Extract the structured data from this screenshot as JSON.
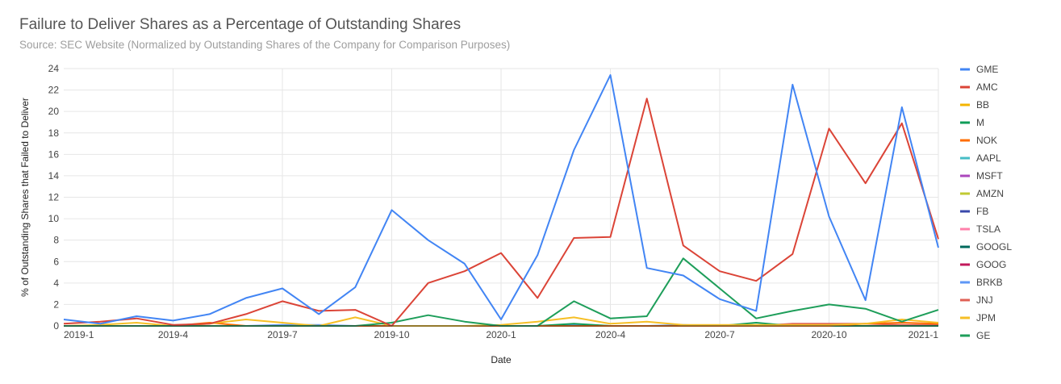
{
  "chart_data": {
    "type": "line",
    "title": "Failure to Deliver Shares as a Percentage of Outstanding Shares",
    "subtitle": "Source: SEC Website (Normalized by Outstanding Shares of the Company for Comparison Purposes)",
    "xlabel": "Date",
    "ylabel": "% of Outstanding Shares that Failed to Deliver",
    "ylim": [
      0,
      24
    ],
    "yticks": [
      0,
      2,
      4,
      6,
      8,
      10,
      12,
      14,
      16,
      18,
      20,
      22,
      24
    ],
    "xticks": [
      "2019-1",
      "2019-4",
      "2019-7",
      "2019-10",
      "2020-1",
      "2020-4",
      "2020-7",
      "2020-10",
      "2021-1"
    ],
    "x": [
      "2019-1",
      "2019-2",
      "2019-3",
      "2019-4",
      "2019-5",
      "2019-6",
      "2019-7",
      "2019-8",
      "2019-9",
      "2019-10",
      "2019-11",
      "2019-12",
      "2020-1",
      "2020-2",
      "2020-3",
      "2020-4",
      "2020-5",
      "2020-6",
      "2020-7",
      "2020-8",
      "2020-9",
      "2020-10",
      "2020-11",
      "2020-12",
      "2021-1"
    ],
    "grid": true,
    "legend_position": "right",
    "series": [
      {
        "name": "GME",
        "color": "#4285f4",
        "values": [
          0.6,
          0.2,
          0.9,
          0.5,
          1.1,
          2.6,
          3.5,
          1.1,
          3.6,
          10.8,
          8.0,
          5.8,
          0.6,
          6.6,
          16.4,
          23.4,
          5.4,
          4.7,
          2.5,
          1.4,
          22.5,
          10.2,
          2.4,
          20.4,
          7.3
        ]
      },
      {
        "name": "AMC",
        "color": "#db4437",
        "values": [
          0.2,
          0.4,
          0.7,
          0.1,
          0.2,
          1.1,
          2.3,
          1.4,
          1.5,
          0.0,
          4.0,
          5.1,
          6.8,
          2.6,
          8.2,
          8.3,
          21.2,
          7.5,
          5.1,
          4.2,
          6.7,
          18.4,
          13.3,
          18.9,
          8.1
        ]
      },
      {
        "name": "BB",
        "color": "#f4b400",
        "values": [
          0.0,
          0.0,
          0.0,
          0.0,
          0.0,
          0.0,
          0.0,
          0.0,
          0.0,
          0.0,
          0.0,
          0.0,
          0.0,
          0.0,
          0.0,
          0.0,
          0.0,
          0.0,
          0.0,
          0.0,
          0.0,
          0.0,
          0.0,
          0.0,
          0.0
        ]
      },
      {
        "name": "M",
        "color": "#0f9d58",
        "values": [
          0.0,
          0.0,
          0.0,
          0.0,
          0.0,
          0.0,
          0.0,
          0.0,
          0.0,
          0.0,
          0.0,
          0.0,
          0.0,
          0.0,
          0.2,
          0.0,
          0.0,
          0.0,
          0.0,
          0.3,
          0.0,
          0.0,
          0.0,
          0.0,
          0.0
        ]
      },
      {
        "name": "NOK",
        "color": "#ff6d00",
        "values": [
          0.0,
          0.0,
          0.0,
          0.0,
          0.3,
          0.0,
          0.0,
          0.0,
          0.0,
          0.0,
          0.0,
          0.0,
          0.0,
          0.0,
          0.0,
          0.0,
          0.0,
          0.0,
          0.0,
          0.0,
          0.0,
          0.0,
          0.2,
          0.3,
          0.2
        ]
      },
      {
        "name": "AAPL",
        "color": "#46bdc6",
        "values": [
          0.0,
          0.0,
          0.0,
          0.0,
          0.0,
          0.0,
          0.0,
          0.0,
          0.0,
          0.0,
          0.0,
          0.0,
          0.0,
          0.0,
          0.0,
          0.0,
          0.0,
          0.0,
          0.0,
          0.0,
          0.0,
          0.0,
          0.0,
          0.0,
          0.0
        ]
      },
      {
        "name": "MSFT",
        "color": "#ab47bc",
        "values": [
          0.0,
          0.0,
          0.0,
          0.0,
          0.0,
          0.0,
          0.0,
          0.0,
          0.0,
          0.0,
          0.0,
          0.0,
          0.0,
          0.0,
          0.0,
          0.0,
          0.0,
          0.0,
          0.0,
          0.0,
          0.0,
          0.0,
          0.0,
          0.0,
          0.0
        ]
      },
      {
        "name": "AMZN",
        "color": "#c0ca33",
        "values": [
          0.0,
          0.0,
          0.0,
          0.0,
          0.0,
          0.0,
          0.0,
          0.0,
          0.0,
          0.0,
          0.0,
          0.0,
          0.0,
          0.0,
          0.0,
          0.0,
          0.0,
          0.0,
          0.0,
          0.0,
          0.0,
          0.0,
          0.0,
          0.0,
          0.0
        ]
      },
      {
        "name": "FB",
        "color": "#3949ab",
        "values": [
          0.0,
          0.0,
          0.0,
          0.0,
          0.0,
          0.0,
          0.0,
          0.0,
          0.0,
          0.0,
          0.0,
          0.0,
          0.0,
          0.0,
          0.0,
          0.0,
          0.0,
          0.0,
          0.0,
          0.0,
          0.0,
          0.0,
          0.0,
          0.0,
          0.0
        ]
      },
      {
        "name": "TSLA",
        "color": "#ff80ab",
        "values": [
          0.0,
          0.0,
          0.0,
          0.0,
          0.0,
          0.0,
          0.0,
          0.0,
          0.0,
          0.0,
          0.0,
          0.0,
          0.0,
          0.0,
          0.0,
          0.0,
          0.0,
          0.0,
          0.0,
          0.0,
          0.0,
          0.0,
          0.0,
          0.0,
          0.0
        ]
      },
      {
        "name": "GOOGL",
        "color": "#00695c",
        "values": [
          0.0,
          0.0,
          0.0,
          0.0,
          0.0,
          0.0,
          0.0,
          0.0,
          0.0,
          0.0,
          0.0,
          0.0,
          0.0,
          0.0,
          0.0,
          0.0,
          0.0,
          0.0,
          0.0,
          0.0,
          0.0,
          0.0,
          0.0,
          0.0,
          0.0
        ]
      },
      {
        "name": "GOOG",
        "color": "#c2185b",
        "values": [
          0.0,
          0.0,
          0.0,
          0.0,
          0.0,
          0.0,
          0.0,
          0.0,
          0.0,
          0.0,
          0.0,
          0.0,
          0.0,
          0.0,
          0.0,
          0.0,
          0.0,
          0.0,
          0.0,
          0.0,
          0.0,
          0.0,
          0.0,
          0.0,
          0.0
        ]
      },
      {
        "name": "BRKB",
        "color": "#5e97f6",
        "values": [
          0.0,
          0.0,
          0.0,
          0.0,
          0.0,
          0.0,
          0.1,
          0.1,
          0.0,
          0.0,
          0.0,
          0.0,
          0.0,
          0.0,
          0.1,
          0.0,
          0.0,
          0.1,
          0.0,
          0.0,
          0.1,
          0.0,
          0.0,
          0.0,
          0.0
        ]
      },
      {
        "name": "JNJ",
        "color": "#e06055",
        "values": [
          0.0,
          0.0,
          0.0,
          0.0,
          0.0,
          0.0,
          0.0,
          0.0,
          0.0,
          0.0,
          0.0,
          0.0,
          0.0,
          0.0,
          0.0,
          0.0,
          0.0,
          0.0,
          0.0,
          0.0,
          0.2,
          0.2,
          0.2,
          0.1,
          0.1
        ]
      },
      {
        "name": "JPM",
        "color": "#f6bf26",
        "values": [
          0.0,
          0.1,
          0.3,
          0.0,
          0.2,
          0.6,
          0.3,
          0.0,
          0.8,
          0.0,
          0.0,
          0.0,
          0.1,
          0.4,
          0.8,
          0.2,
          0.4,
          0.1,
          0.1,
          0.1,
          0.1,
          0.1,
          0.2,
          0.6,
          0.3
        ]
      },
      {
        "name": "GE",
        "color": "#1e9e5a",
        "values": [
          0.0,
          0.0,
          0.0,
          0.0,
          0.0,
          0.0,
          0.0,
          0.0,
          0.0,
          0.3,
          1.0,
          0.4,
          0.0,
          0.0,
          2.3,
          0.7,
          0.9,
          6.3,
          3.5,
          0.7,
          1.4,
          2.0,
          1.6,
          0.4,
          1.5
        ]
      }
    ]
  }
}
